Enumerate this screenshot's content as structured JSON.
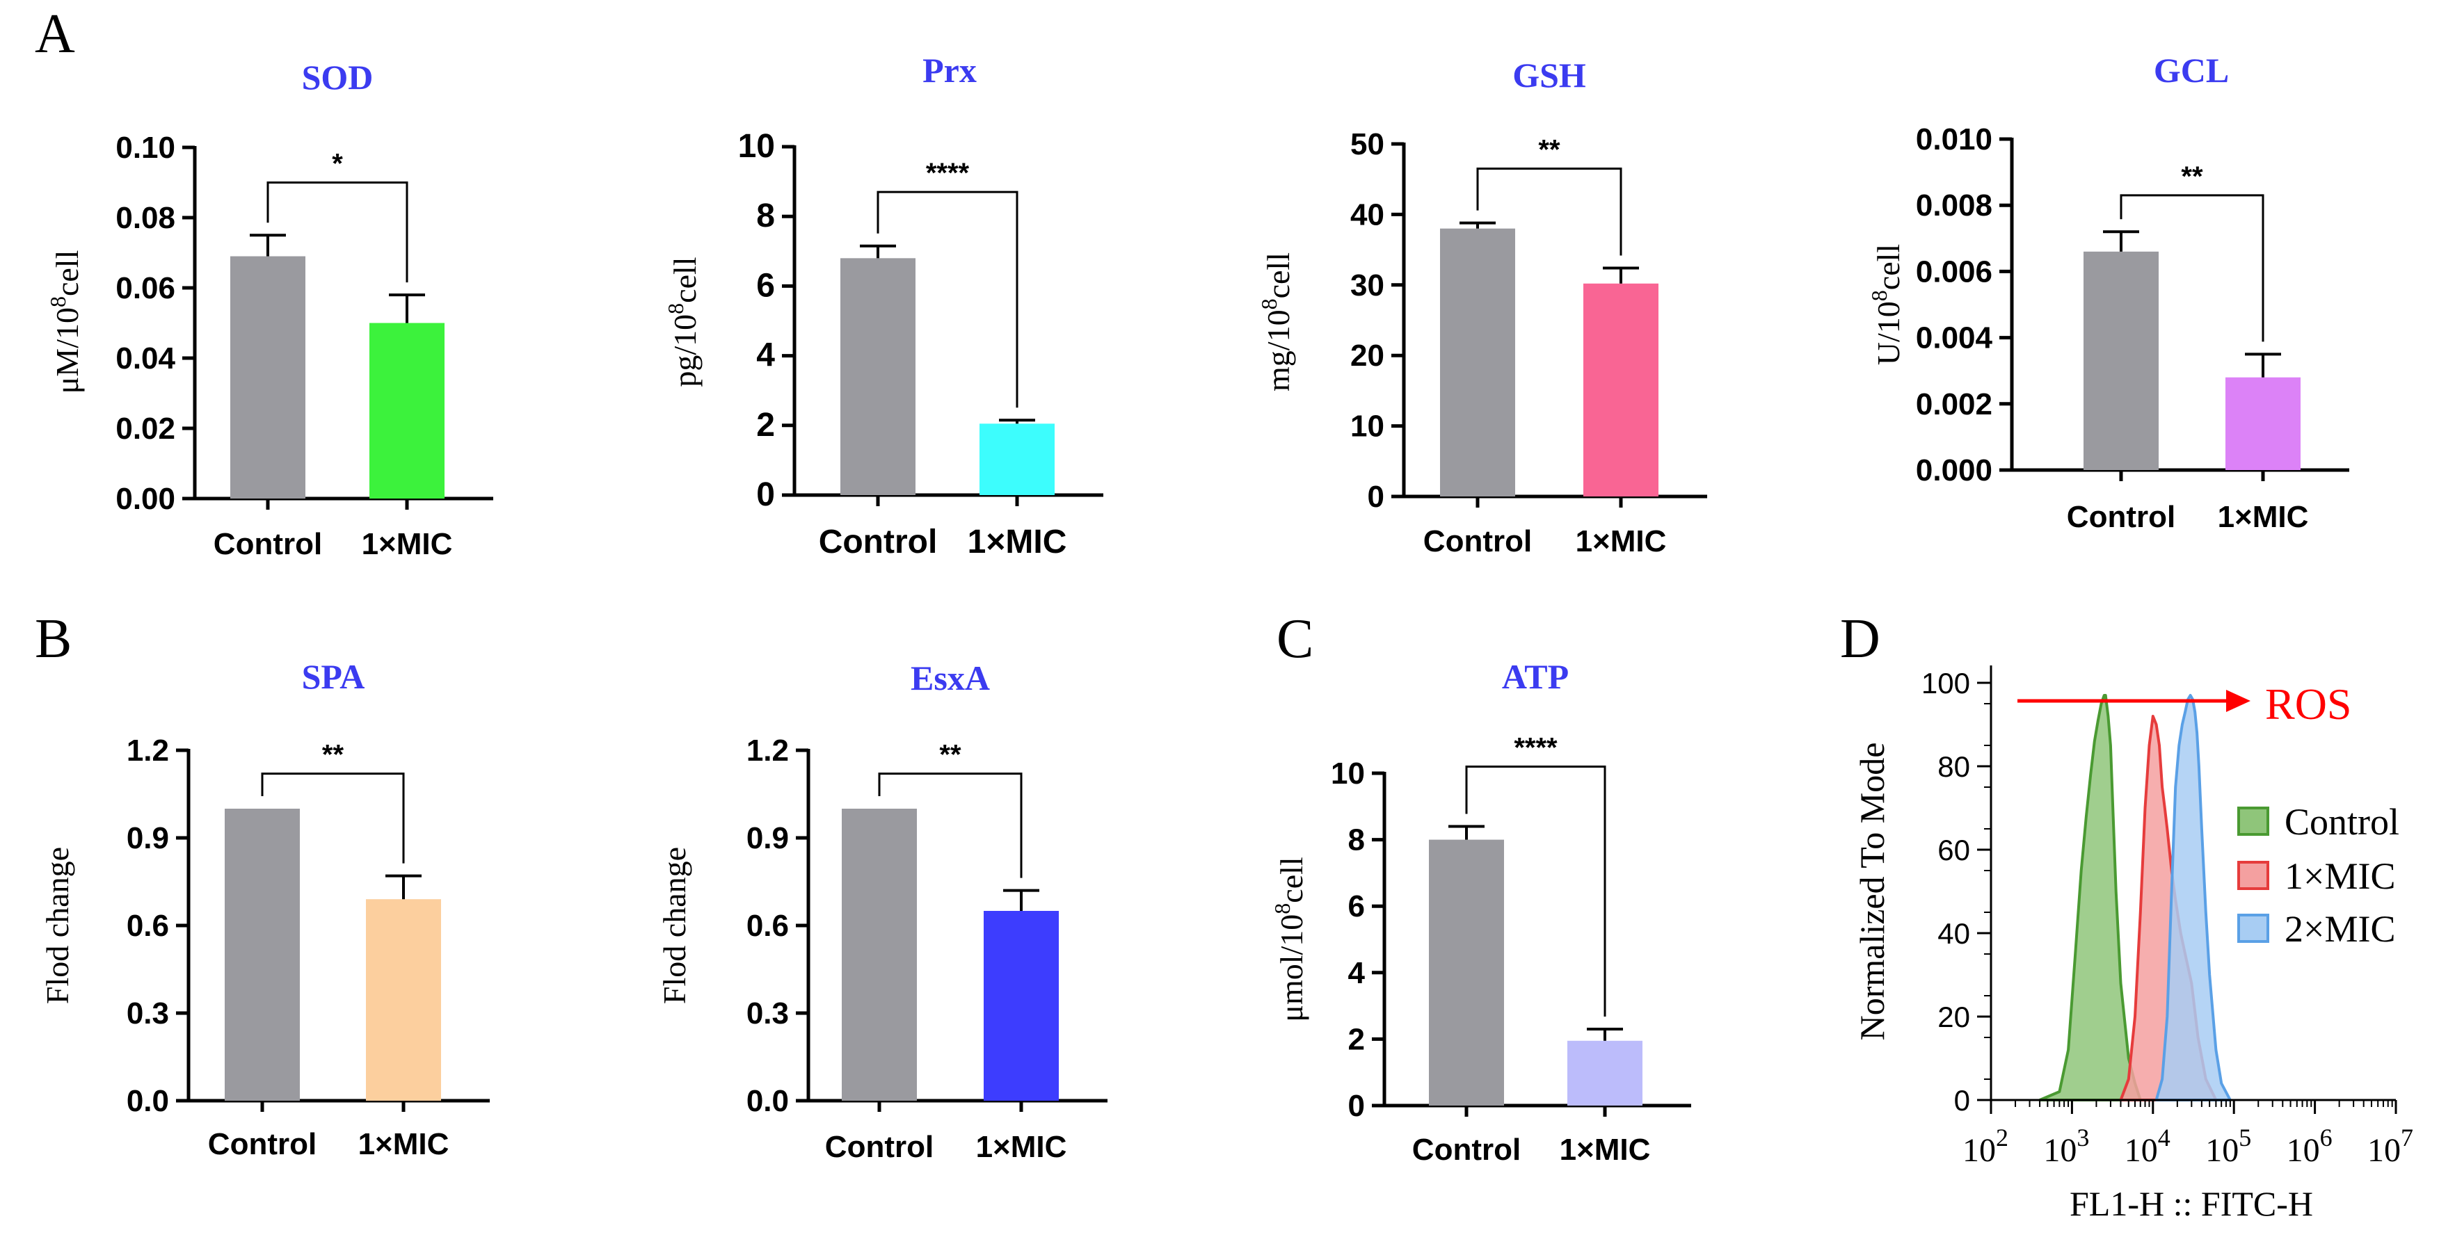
{
  "panel_labels": [
    "A",
    "B",
    "C",
    "D"
  ],
  "colors": {
    "control": "#9a9a9f",
    "title": "#3b3bf0",
    "axis": "#000000",
    "ros_arrow": "#ff0000"
  },
  "chart_data": [
    {
      "type": "bar",
      "panel": "A",
      "title": "SOD",
      "categories": [
        "Control",
        "1×MIC"
      ],
      "values": [
        0.069,
        0.05
      ],
      "errors": [
        0.006,
        0.008
      ],
      "colors": [
        "#9a9a9f",
        "#3cf23c"
      ],
      "ylim": [
        0,
        0.1
      ],
      "yticks": [
        0,
        0.02,
        0.04,
        0.06,
        0.08,
        0.1
      ],
      "ytick_labels": [
        "0.00",
        "0.02",
        "0.04",
        "0.06",
        "0.08",
        "0.10"
      ],
      "ylabel": "μM/10^8cell",
      "ylabel_parts": [
        "μM/10",
        "8",
        "cell"
      ],
      "xlabel": "",
      "significance": "*",
      "bracket_level": 0.09
    },
    {
      "type": "bar",
      "panel": "A",
      "title": "Prx",
      "categories": [
        "Control",
        "1×MIC"
      ],
      "values": [
        6.8,
        2.05
      ],
      "errors": [
        0.35,
        0.1
      ],
      "colors": [
        "#9a9a9f",
        "#3dfdfd"
      ],
      "ylim": [
        0,
        10
      ],
      "yticks": [
        0,
        2,
        4,
        6,
        8,
        10
      ],
      "ytick_labels": [
        "0",
        "2",
        "4",
        "6",
        "8",
        "10"
      ],
      "ylabel": "pg/10^8cell",
      "ylabel_parts": [
        "pg/10",
        "8",
        "cell"
      ],
      "xlabel": "",
      "significance": "****",
      "bracket_level": 8.7
    },
    {
      "type": "bar",
      "panel": "A",
      "title": "GSH",
      "categories": [
        "Control",
        "1×MIC"
      ],
      "values": [
        38,
        30.2
      ],
      "errors": [
        0.8,
        2.2
      ],
      "colors": [
        "#9a9a9f",
        "#f96594"
      ],
      "ylim": [
        0,
        50
      ],
      "yticks": [
        0,
        10,
        20,
        30,
        40,
        50
      ],
      "ytick_labels": [
        "0",
        "10",
        "20",
        "30",
        "40",
        "50"
      ],
      "ylabel": "mg/10^8cell",
      "ylabel_parts": [
        "mg/10",
        "8",
        "cell"
      ],
      "xlabel": "",
      "significance": "**",
      "bracket_level": 46.5
    },
    {
      "type": "bar",
      "panel": "A",
      "title": "GCL",
      "categories": [
        "Control",
        "1×MIC"
      ],
      "values": [
        0.0066,
        0.0028
      ],
      "errors": [
        0.0006,
        0.0007
      ],
      "colors": [
        "#9a9a9f",
        "#dc82f7"
      ],
      "ylim": [
        0,
        0.01
      ],
      "yticks": [
        0,
        0.002,
        0.004,
        0.006,
        0.008,
        0.01
      ],
      "ytick_labels": [
        "0.000",
        "0.002",
        "0.004",
        "0.006",
        "0.008",
        "0.010"
      ],
      "ylabel": "U/10^8cell",
      "ylabel_parts": [
        "U/10",
        "8",
        "cell"
      ],
      "xlabel": "",
      "significance": "**",
      "bracket_level": 0.0083
    },
    {
      "type": "bar",
      "panel": "B",
      "title": "SPA",
      "categories": [
        "Control",
        "1×MIC"
      ],
      "values": [
        1.0,
        0.69
      ],
      "errors": [
        0,
        0.08
      ],
      "colors": [
        "#9a9a9f",
        "#fccf9e"
      ],
      "ylim": [
        0,
        1.2
      ],
      "yticks": [
        0,
        0.3,
        0.6,
        0.9,
        1.2
      ],
      "ytick_labels": [
        "0.0",
        "0.3",
        "0.6",
        "0.9",
        "1.2"
      ],
      "ylabel": "Flod change",
      "ylabel_parts": [
        "Flod change",
        "",
        ""
      ],
      "xlabel": "",
      "significance": "**",
      "bracket_level": 1.12
    },
    {
      "type": "bar",
      "panel": "B",
      "title": "EsxA",
      "categories": [
        "Control",
        "1×MIC"
      ],
      "values": [
        1.0,
        0.65
      ],
      "errors": [
        0,
        0.07
      ],
      "colors": [
        "#9a9a9f",
        "#3d3dfe"
      ],
      "ylim": [
        0,
        1.2
      ],
      "yticks": [
        0,
        0.3,
        0.6,
        0.9,
        1.2
      ],
      "ytick_labels": [
        "0.0",
        "0.3",
        "0.6",
        "0.9",
        "1.2"
      ],
      "ylabel": "Flod change",
      "ylabel_parts": [
        "Flod change",
        "",
        ""
      ],
      "xlabel": "",
      "significance": "**",
      "bracket_level": 1.12
    },
    {
      "type": "bar",
      "panel": "C",
      "title": "ATP",
      "categories": [
        "Control",
        "1×MIC"
      ],
      "values": [
        8.0,
        1.95
      ],
      "errors": [
        0.4,
        0.35
      ],
      "colors": [
        "#9a9a9f",
        "#bcbcfb"
      ],
      "ylim": [
        0,
        10
      ],
      "yticks": [
        0,
        2,
        4,
        6,
        8,
        10
      ],
      "ytick_labels": [
        "0",
        "2",
        "4",
        "6",
        "8",
        "10"
      ],
      "ylabel": "μmol/10^8cell",
      "ylabel_parts": [
        "μmol/10",
        "8",
        "cell"
      ],
      "xlabel": "",
      "significance": "****",
      "bracket_level": 10.2
    },
    {
      "type": "area",
      "panel": "D",
      "title": "",
      "xscale": "log",
      "xlabel": "FL1-H :: FITC-H",
      "ylabel": "Normalized To Mode",
      "xlim": [
        100,
        10000000
      ],
      "ylim": [
        0,
        100
      ],
      "yticks": [
        0,
        20,
        40,
        60,
        80,
        100
      ],
      "ytick_labels": [
        "0",
        "20",
        "40",
        "60",
        "80",
        "100"
      ],
      "xtick_exponents": [
        "2",
        "3",
        "4",
        "5",
        "6",
        "7"
      ],
      "xtick_base": "10",
      "annotation": "ROS",
      "legend_position": "right",
      "series": [
        {
          "name": "Control",
          "color": "#4a9a32",
          "fill": "#8fc57a",
          "x": [
            400,
            700,
            900,
            1100,
            1300,
            1500,
            1700,
            1900,
            2100,
            2300,
            2500,
            2600,
            2800,
            3000,
            3200,
            3500,
            4000,
            5000,
            6000,
            7000
          ],
          "y": [
            0,
            2,
            12,
            35,
            55,
            68,
            78,
            86,
            91,
            95,
            97,
            97,
            92,
            85,
            70,
            50,
            28,
            10,
            4,
            0
          ]
        },
        {
          "name": "1×MIC",
          "color": "#e63c3c",
          "fill": "#f4a0a0",
          "x": [
            4000,
            5000,
            6000,
            7000,
            8000,
            9000,
            10000,
            11000,
            12000,
            13000,
            14000,
            15000,
            17000,
            19000,
            22000,
            25000,
            30000,
            36000,
            45000,
            60000
          ],
          "y": [
            0,
            5,
            20,
            45,
            70,
            85,
            92,
            90,
            85,
            75,
            70,
            65,
            55,
            48,
            40,
            35,
            28,
            15,
            5,
            0
          ]
        },
        {
          "name": "2×MIC",
          "color": "#5aa0e6",
          "fill": "#a8cdf3",
          "x": [
            11000,
            13000,
            15000,
            17000,
            19000,
            21000,
            23000,
            25000,
            27000,
            29000,
            31000,
            33000,
            35000,
            37000,
            40000,
            45000,
            50000,
            60000,
            70000,
            90000
          ],
          "y": [
            0,
            5,
            20,
            50,
            75,
            85,
            90,
            93,
            96,
            97,
            96,
            93,
            88,
            80,
            65,
            45,
            30,
            12,
            4,
            0
          ]
        }
      ]
    }
  ]
}
